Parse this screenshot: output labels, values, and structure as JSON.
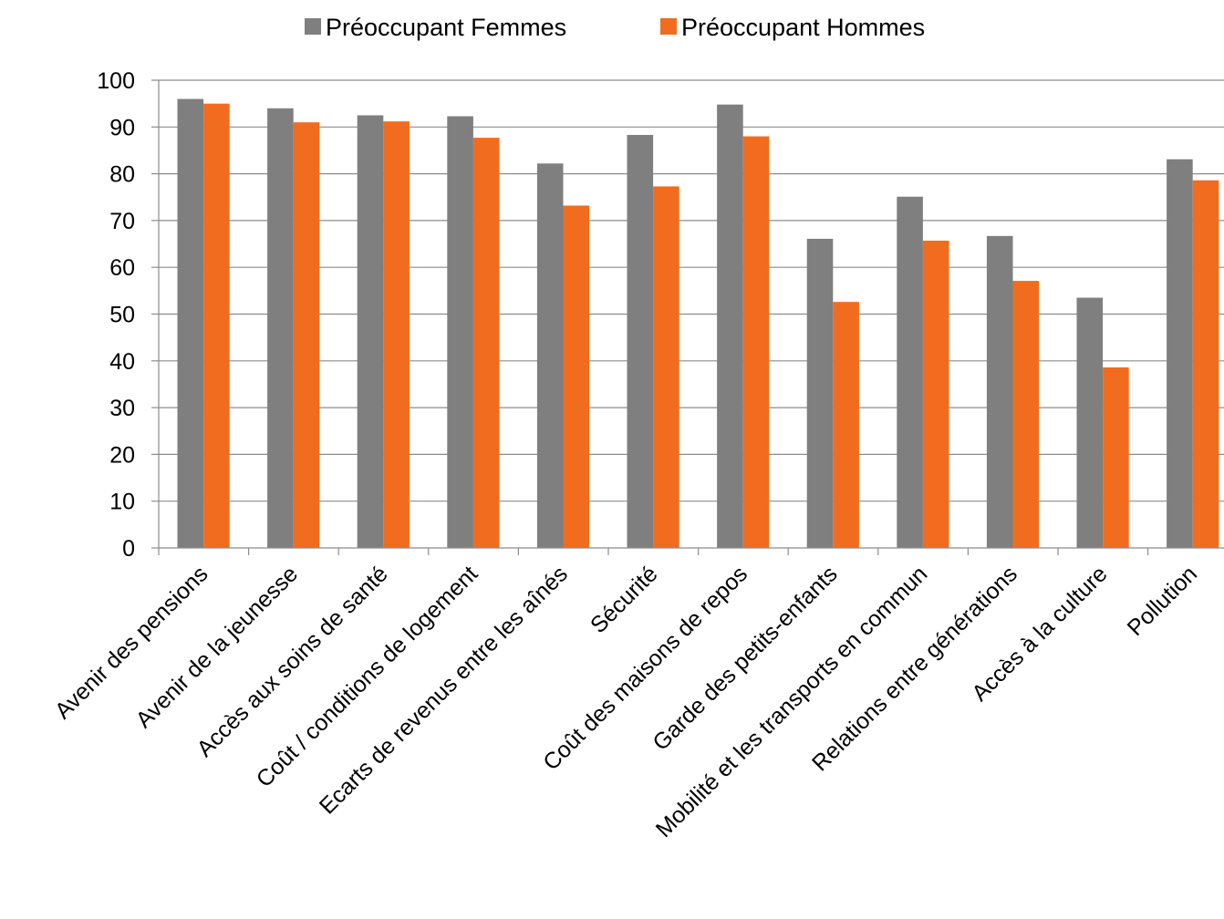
{
  "chart_data": {
    "type": "bar",
    "categories": [
      "Avenir des pensions",
      "Avenir de la jeunesse",
      "Accès aux soins de santé",
      "Coût / conditions de logement",
      "Ecarts de revenus entre les aînés",
      "Sécurité",
      "Coût des maisons de repos",
      "Garde des petits-enfants",
      "Mobilité et les transports en commun",
      "Relations entre générations",
      "Accès à la culture",
      "Pollution"
    ],
    "series": [
      {
        "name": "Préoccupant Femmes",
        "color": "#7f7f7f",
        "values": [
          96,
          94,
          92.5,
          92.3,
          82.2,
          88.3,
          94.8,
          66.1,
          75.1,
          66.7,
          53.5,
          83.1
        ]
      },
      {
        "name": "Préoccupant Hommes",
        "color": "#f26c1f",
        "values": [
          95,
          91,
          91.2,
          87.7,
          73.2,
          77.3,
          88,
          52.6,
          65.7,
          57.1,
          38.6,
          78.6
        ]
      }
    ],
    "y_ticks": [
      "0",
      "10",
      "20",
      "30",
      "40",
      "50",
      "60",
      "70",
      "80",
      "90",
      "100"
    ],
    "ylim": [
      0,
      100
    ],
    "grid": true,
    "legend_position": "top-center",
    "title": "",
    "xlabel": "",
    "ylabel": ""
  }
}
